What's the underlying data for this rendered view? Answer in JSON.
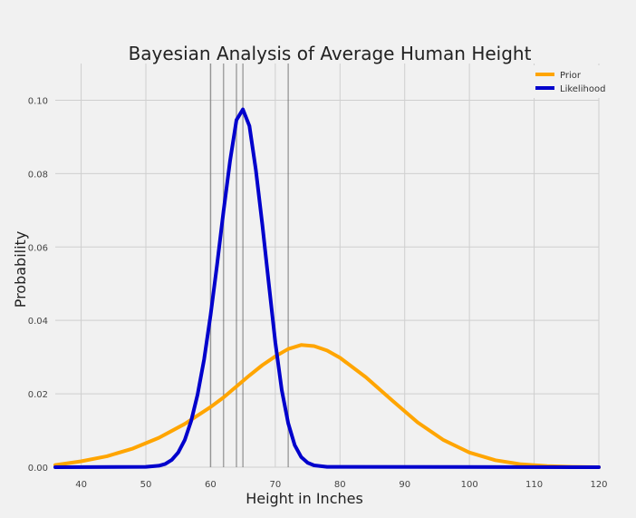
{
  "chart_data": {
    "type": "line",
    "title": "Bayesian Analysis of Average Human Height",
    "xlabel": "Height in Inches",
    "ylabel": "Probability",
    "xlim": [
      36,
      120
    ],
    "ylim": [
      0,
      0.11
    ],
    "xticks": [
      40,
      50,
      60,
      70,
      80,
      90,
      100,
      110,
      120
    ],
    "xtick_labels": [
      "40",
      "50",
      "60",
      "70",
      "80",
      "90",
      "100",
      "110",
      "120"
    ],
    "yticks": [
      0,
      0.02,
      0.04,
      0.06,
      0.08,
      0.1
    ],
    "ytick_labels": [
      "0.00",
      "0.02",
      "0.04",
      "0.06",
      "0.08",
      "0.10"
    ],
    "grid": true,
    "legend_position": "top-right",
    "series": [
      {
        "name": "Prior",
        "color": "#FFA500",
        "x": [
          36,
          40,
          44,
          48,
          52,
          56,
          60,
          62,
          64,
          66,
          68,
          70,
          72,
          74,
          76,
          78,
          80,
          84,
          88,
          92,
          96,
          100,
          104,
          108,
          112,
          116,
          120
        ],
        "y": [
          0.0006,
          0.0016,
          0.003,
          0.0051,
          0.008,
          0.0118,
          0.0164,
          0.019,
          0.022,
          0.025,
          0.0278,
          0.0302,
          0.0322,
          0.0333,
          0.033,
          0.0318,
          0.0298,
          0.0245,
          0.0183,
          0.0122,
          0.0074,
          0.004,
          0.0019,
          0.0008,
          0.0003,
          0.0001,
          0.0
        ]
      },
      {
        "name": "Likelihood",
        "color": "#0000CC",
        "x": [
          36,
          50,
          52,
          53,
          54,
          55,
          56,
          57,
          58,
          59,
          60,
          61,
          62,
          63,
          64,
          65,
          66,
          67,
          68,
          69,
          70,
          71,
          72,
          73,
          74,
          75,
          76,
          78,
          120
        ],
        "y": [
          0,
          0.0001,
          0.0004,
          0.0009,
          0.002,
          0.004,
          0.0074,
          0.0126,
          0.0198,
          0.0294,
          0.0414,
          0.0552,
          0.0697,
          0.0834,
          0.0946,
          0.0975,
          0.093,
          0.081,
          0.066,
          0.05,
          0.034,
          0.021,
          0.012,
          0.006,
          0.0028,
          0.0012,
          0.0005,
          0.0001,
          0
        ]
      }
    ],
    "vertical_lines": [
      60,
      62,
      64,
      65,
      72
    ],
    "vertical_line_color": "#555555"
  }
}
